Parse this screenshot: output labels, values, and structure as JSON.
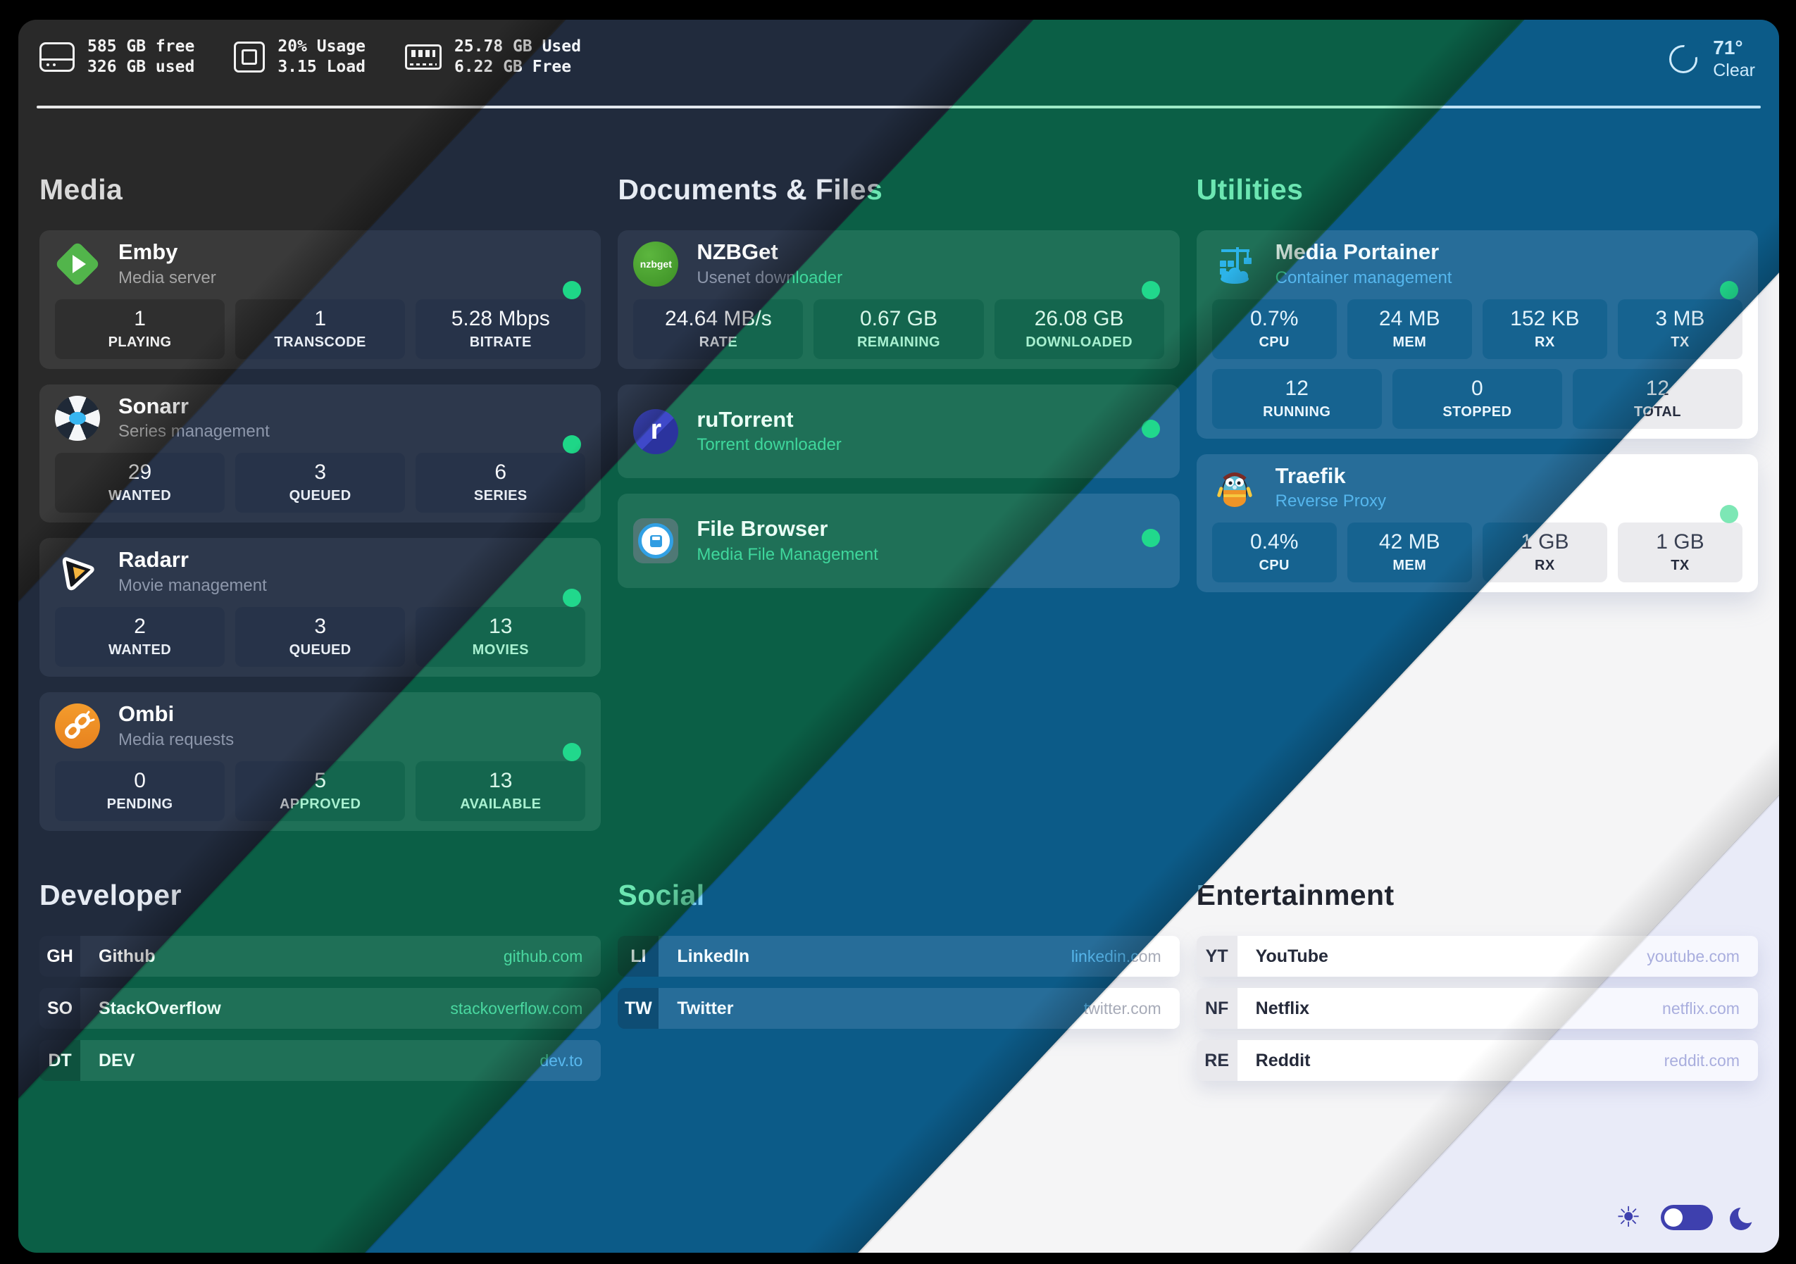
{
  "topbar": {
    "disk": {
      "line1": "585 GB free",
      "line2": "326 GB used"
    },
    "cpu": {
      "line1": "20% Usage",
      "line2": "3.15 Load"
    },
    "ram": {
      "line1": "25.78 GB Used",
      "line2": "6.22 GB Free"
    },
    "weather": {
      "temp": "71°",
      "condition": "Clear"
    }
  },
  "sections": {
    "media": {
      "title": "Media",
      "apps": [
        {
          "name": "Emby",
          "desc": "Media server",
          "icon": "emby-icon",
          "stats": [
            {
              "value": "1",
              "label": "PLAYING"
            },
            {
              "value": "1",
              "label": "TRANSCODE"
            },
            {
              "value": "5.28 Mbps",
              "label": "BITRATE"
            }
          ]
        },
        {
          "name": "Sonarr",
          "desc": "Series management",
          "icon": "sonarr-icon",
          "stats": [
            {
              "value": "29",
              "label": "WANTED"
            },
            {
              "value": "3",
              "label": "QUEUED"
            },
            {
              "value": "6",
              "label": "SERIES"
            }
          ]
        },
        {
          "name": "Radarr",
          "desc": "Movie management",
          "icon": "radarr-icon",
          "stats": [
            {
              "value": "2",
              "label": "WANTED"
            },
            {
              "value": "3",
              "label": "QUEUED"
            },
            {
              "value": "13",
              "label": "MOVIES"
            }
          ]
        },
        {
          "name": "Ombi",
          "desc": "Media requests",
          "icon": "ombi-icon",
          "stats": [
            {
              "value": "0",
              "label": "PENDING"
            },
            {
              "value": "5",
              "label": "APPROVED"
            },
            {
              "value": "13",
              "label": "AVAILABLE"
            }
          ]
        }
      ]
    },
    "documents": {
      "title": "Documents & Files",
      "apps": [
        {
          "name": "NZBGet",
          "desc": "Usenet downloader",
          "icon": "nzbget-icon",
          "icon_text": "nzbget",
          "stats": [
            {
              "value": "24.64 MB/s",
              "label": "RATE"
            },
            {
              "value": "0.67 GB",
              "label": "REMAINING"
            },
            {
              "value": "26.08 GB",
              "label": "DOWNLOADED"
            }
          ]
        },
        {
          "name": "ruTorrent",
          "desc": "Torrent downloader",
          "icon": "rutorrent-icon",
          "icon_text": "r"
        },
        {
          "name": "File Browser",
          "desc": "Media File Management",
          "icon": "filebrowser-icon"
        }
      ]
    },
    "utilities": {
      "title": "Utilities",
      "apps": [
        {
          "name": "Media Portainer",
          "desc": "Container management",
          "icon": "portainer-icon",
          "stats": [
            {
              "value": "0.7%",
              "label": "CPU"
            },
            {
              "value": "24 MB",
              "label": "MEM"
            },
            {
              "value": "152 KB",
              "label": "RX"
            },
            {
              "value": "3 MB",
              "label": "TX"
            }
          ],
          "stats2": [
            {
              "value": "12",
              "label": "RUNNING"
            },
            {
              "value": "0",
              "label": "STOPPED"
            },
            {
              "value": "12",
              "label": "TOTAL"
            }
          ]
        },
        {
          "name": "Traefik",
          "desc": "Reverse Proxy",
          "icon": "traefik-icon",
          "stats": [
            {
              "value": "0.4%",
              "label": "CPU"
            },
            {
              "value": "42 MB",
              "label": "MEM"
            },
            {
              "value": "1 GB",
              "label": "RX"
            },
            {
              "value": "1 GB",
              "label": "TX"
            }
          ]
        }
      ]
    }
  },
  "bookmarks": {
    "developer": {
      "title": "Developer",
      "links": [
        {
          "abbr": "GH",
          "name": "Github",
          "domain": "github.com"
        },
        {
          "abbr": "SO",
          "name": "StackOverflow",
          "domain": "stackoverflow.com"
        },
        {
          "abbr": "DT",
          "name": "DEV",
          "domain": "dev.to"
        }
      ]
    },
    "social": {
      "title": "Social",
      "links": [
        {
          "abbr": "LI",
          "name": "LinkedIn",
          "domain": "linkedin.com"
        },
        {
          "abbr": "TW",
          "name": "Twitter",
          "domain": "twitter.com"
        }
      ]
    },
    "entertainment": {
      "title": "Entertainment",
      "links": [
        {
          "abbr": "YT",
          "name": "YouTube",
          "domain": "youtube.com"
        },
        {
          "abbr": "NF",
          "name": "Netflix",
          "domain": "netflix.com"
        },
        {
          "abbr": "RE",
          "name": "Reddit",
          "domain": "reddit.com"
        }
      ]
    }
  },
  "colors": {
    "status_dot": "#1ed687",
    "toggle_accent": "#3e40ae",
    "bands": [
      "#292929",
      "#212b3d",
      "#0b5f46",
      "#0c5b88",
      "#f5f5f6",
      "#e9ebf8"
    ]
  }
}
